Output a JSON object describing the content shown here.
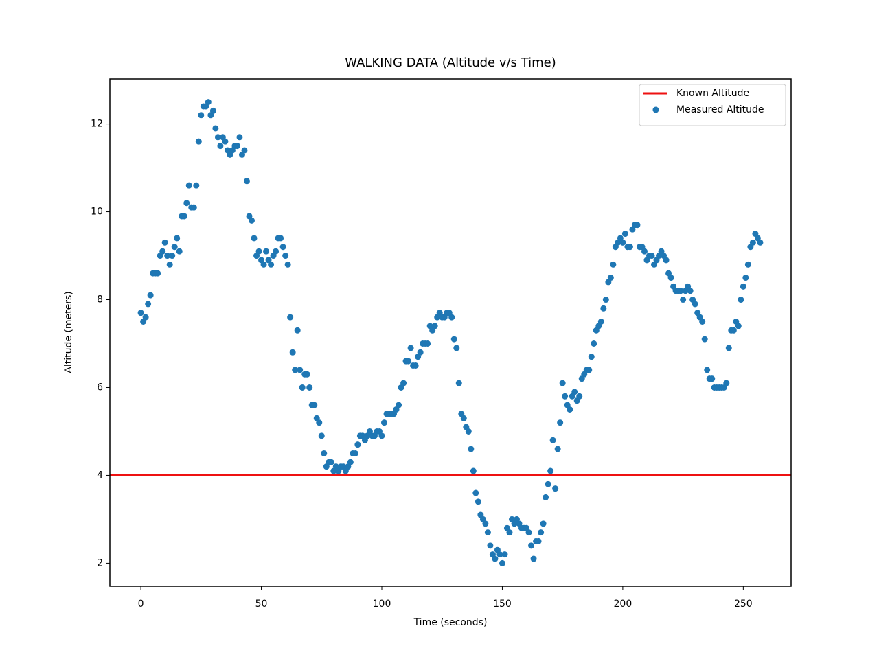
{
  "chart_data": {
    "type": "scatter",
    "title": "WALKING DATA (Altitude v/s Time)",
    "x_label": "Time (seconds)",
    "y_label": "Altitude (meters)",
    "xlim": [
      -12.85,
      269.85
    ],
    "ylim": [
      1.475,
      13.025
    ],
    "xticks": [
      0,
      50,
      100,
      150,
      200,
      250
    ],
    "yticks": [
      2,
      4,
      6,
      8,
      10,
      12
    ],
    "grid": false,
    "legend": "upper right",
    "series": [
      {
        "name": "Known Altitude",
        "type": "hline",
        "color": "#ee1111",
        "value": 4
      },
      {
        "name": "Measured Altitude",
        "type": "scatter",
        "color": "#1f77b4",
        "x": [
          0,
          1,
          2,
          3,
          4,
          5,
          6,
          7,
          8,
          9,
          10,
          11,
          12,
          13,
          14,
          15,
          16,
          17,
          18,
          19,
          20,
          21,
          22,
          23,
          24,
          25,
          26,
          27,
          28,
          29,
          30,
          31,
          32,
          33,
          34,
          35,
          36,
          37,
          38,
          39,
          40,
          41,
          42,
          43,
          44,
          45,
          46,
          47,
          48,
          49,
          50,
          51,
          52,
          53,
          54,
          55,
          56,
          57,
          58,
          59,
          60,
          61,
          62,
          63,
          64,
          65,
          66,
          67,
          68,
          69,
          70,
          71,
          72,
          73,
          74,
          75,
          76,
          77,
          78,
          79,
          80,
          81,
          82,
          83,
          84,
          85,
          86,
          87,
          88,
          89,
          90,
          91,
          92,
          93,
          94,
          95,
          96,
          97,
          98,
          99,
          100,
          101,
          102,
          103,
          104,
          105,
          106,
          107,
          108,
          109,
          110,
          111,
          112,
          113,
          114,
          115,
          116,
          117,
          118,
          119,
          120,
          121,
          122,
          123,
          124,
          125,
          126,
          127,
          128,
          129,
          130,
          131,
          132,
          133,
          134,
          135,
          136,
          137,
          138,
          139,
          140,
          141,
          142,
          143,
          144,
          145,
          146,
          147,
          148,
          149,
          150,
          151,
          152,
          153,
          154,
          155,
          156,
          157,
          158,
          159,
          160,
          161,
          162,
          163,
          164,
          165,
          166,
          167,
          168,
          169,
          170,
          171,
          172,
          173,
          174,
          175,
          176,
          177,
          178,
          179,
          180,
          181,
          182,
          183,
          184,
          185,
          186,
          187,
          188,
          189,
          190,
          191,
          192,
          193,
          194,
          195,
          196,
          197,
          198,
          199,
          200,
          201,
          202,
          203,
          204,
          205,
          206,
          207,
          208,
          209,
          210,
          211,
          212,
          213,
          214,
          215,
          216,
          217,
          218,
          219,
          220,
          221,
          222,
          223,
          224,
          225,
          226,
          227,
          228,
          229,
          230,
          231,
          232,
          233,
          234,
          235,
          236,
          237,
          238,
          239,
          240,
          241,
          242,
          243,
          244,
          245,
          246,
          247,
          248,
          249,
          250,
          251,
          252,
          253,
          254,
          255,
          256,
          257
        ],
        "values": [
          7.7,
          7.5,
          7.6,
          7.9,
          8.1,
          8.6,
          8.6,
          8.6,
          9.0,
          9.1,
          9.3,
          9.0,
          8.8,
          9.0,
          9.2,
          9.4,
          9.1,
          9.9,
          9.9,
          10.2,
          10.6,
          10.1,
          10.1,
          10.6,
          11.6,
          12.2,
          12.4,
          12.4,
          12.5,
          12.2,
          12.3,
          11.9,
          11.7,
          11.5,
          11.7,
          11.6,
          11.4,
          11.3,
          11.4,
          11.5,
          11.5,
          11.7,
          11.3,
          11.4,
          10.7,
          9.9,
          9.8,
          9.4,
          9.0,
          9.1,
          8.9,
          8.8,
          9.1,
          8.9,
          8.8,
          9.0,
          9.1,
          9.4,
          9.4,
          9.2,
          9.0,
          8.8,
          7.6,
          6.8,
          6.4,
          7.3,
          6.4,
          6.0,
          6.3,
          6.3,
          6.0,
          5.6,
          5.6,
          5.3,
          5.2,
          4.9,
          4.5,
          4.2,
          4.3,
          4.3,
          4.1,
          4.2,
          4.1,
          4.2,
          4.2,
          4.1,
          4.2,
          4.3,
          4.5,
          4.5,
          4.7,
          4.9,
          4.9,
          4.8,
          4.9,
          5.0,
          4.9,
          4.9,
          5.0,
          5.0,
          4.9,
          5.2,
          5.4,
          5.4,
          5.4,
          5.4,
          5.5,
          5.6,
          6.0,
          6.1,
          6.6,
          6.6,
          6.9,
          6.5,
          6.5,
          6.7,
          6.8,
          7.0,
          7.0,
          7.0,
          7.4,
          7.3,
          7.4,
          7.6,
          7.7,
          7.6,
          7.6,
          7.7,
          7.7,
          7.6,
          7.1,
          6.9,
          6.1,
          5.4,
          5.3,
          5.1,
          5.0,
          4.6,
          4.1,
          3.6,
          3.4,
          3.1,
          3.0,
          2.9,
          2.7,
          2.4,
          2.2,
          2.1,
          2.3,
          2.2,
          2.0,
          2.2,
          2.8,
          2.7,
          3.0,
          2.9,
          3.0,
          2.9,
          2.8,
          2.8,
          2.8,
          2.7,
          2.4,
          2.1,
          2.5,
          2.5,
          2.7,
          2.9,
          3.5,
          3.8,
          4.1,
          4.8,
          3.7,
          4.6,
          5.2,
          6.1,
          5.8,
          5.6,
          5.5,
          5.8,
          5.9,
          5.7,
          5.8,
          6.2,
          6.3,
          6.4,
          6.4,
          6.7,
          7.0,
          7.3,
          7.4,
          7.5,
          7.8,
          8.0,
          8.4,
          8.5,
          8.8,
          9.2,
          9.3,
          9.4,
          9.3,
          9.5,
          9.2,
          9.2,
          9.6,
          9.7,
          9.7,
          9.2,
          9.2,
          9.1,
          8.9,
          9.0,
          9.0,
          8.8,
          8.9,
          9.0,
          9.1,
          9.0,
          8.9,
          8.6,
          8.5,
          8.3,
          8.2,
          8.2,
          8.2,
          8.0,
          8.2,
          8.3,
          8.2,
          8.0,
          7.9,
          7.7,
          7.6,
          7.5,
          7.1,
          6.4,
          6.2,
          6.2,
          6.0,
          6.0,
          6.0,
          6.0,
          6.0,
          6.1,
          6.9,
          7.3,
          7.3,
          7.5,
          7.4,
          8.0,
          8.3,
          8.5,
          8.8,
          9.2,
          9.3,
          9.5,
          9.4,
          9.3
        ]
      }
    ]
  }
}
